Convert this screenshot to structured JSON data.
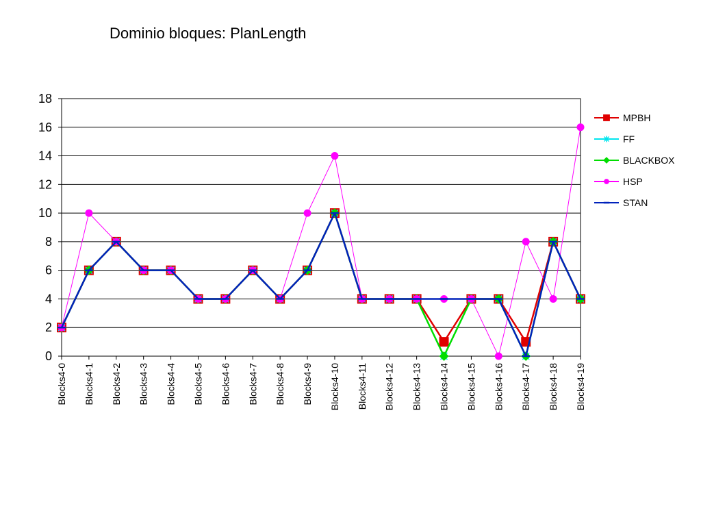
{
  "chart_data": {
    "type": "line",
    "title": "Dominio bloques: PlanLength",
    "xlabel": "",
    "ylabel": "",
    "ylim": [
      0,
      18
    ],
    "yticks": [
      0,
      2,
      4,
      6,
      8,
      10,
      12,
      14,
      16,
      18
    ],
    "grid": true,
    "legend_position": "right",
    "categories": [
      "Blocks4-0",
      "Blocks4-1",
      "Blocks4-2",
      "Blocks4-3",
      "Blocks4-4",
      "Blocks4-5",
      "Blocks4-6",
      "Blocks4-7",
      "Blocks4-8",
      "Blocks4-9",
      "Blocks4-10",
      "Blocks4-11",
      "Blocks4-12",
      "Blocks4-13",
      "Blocks4-14",
      "Blocks4-15",
      "Blocks4-16",
      "Blocks4-17",
      "Blocks4-18",
      "Blocks4-19"
    ],
    "series": [
      {
        "name": "MPBH",
        "color": "#e00000",
        "marker": "square",
        "values": [
          2,
          6,
          8,
          6,
          6,
          4,
          4,
          6,
          4,
          6,
          10,
          4,
          4,
          4,
          1,
          4,
          4,
          1,
          8,
          4
        ]
      },
      {
        "name": "FF",
        "color": "#00e5ee",
        "marker": "star",
        "values": [
          2,
          6,
          8,
          6,
          6,
          4,
          4,
          6,
          4,
          6,
          10,
          4,
          4,
          4,
          0,
          4,
          4,
          0,
          8,
          4
        ]
      },
      {
        "name": "BLACKBOX",
        "color": "#00dd00",
        "marker": "diamond",
        "values": [
          2,
          6,
          8,
          6,
          6,
          4,
          4,
          6,
          4,
          6,
          10,
          4,
          4,
          4,
          0,
          4,
          4,
          0,
          8,
          4
        ]
      },
      {
        "name": "HSP",
        "color": "#ff00ff",
        "marker": "circle",
        "values": [
          2,
          10,
          8,
          6,
          6,
          4,
          4,
          6,
          4,
          10,
          14,
          4,
          4,
          4,
          4,
          4,
          0,
          8,
          4,
          16
        ]
      },
      {
        "name": "STAN",
        "color": "#0022bb",
        "marker": "dash",
        "values": [
          2,
          6,
          8,
          6,
          6,
          4,
          4,
          6,
          4,
          6,
          10,
          4,
          4,
          4,
          4,
          4,
          4,
          0,
          8,
          4
        ]
      }
    ]
  }
}
